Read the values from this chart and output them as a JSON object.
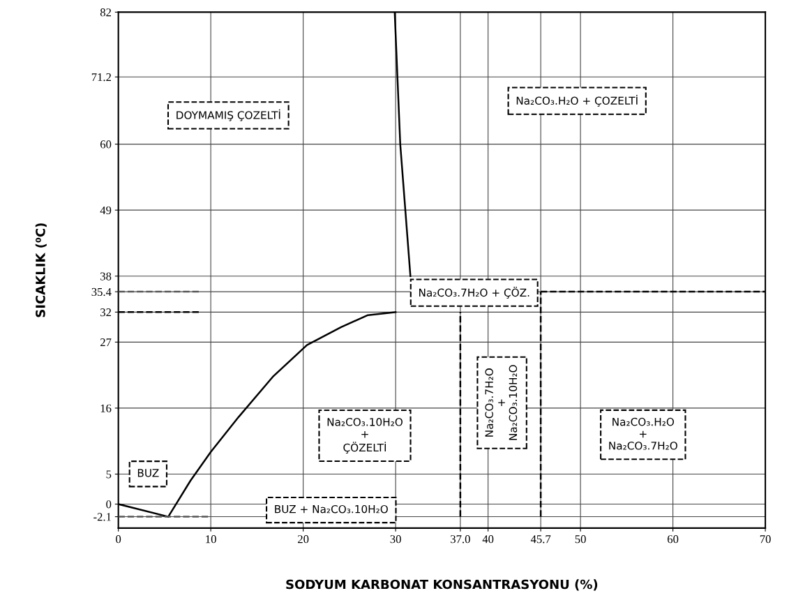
{
  "chart_data": {
    "type": "line",
    "xlabel": "SODYUM KARBONAT KONSANTRASYONU (%)",
    "ylabel": "SICAKLIK (⁰C)",
    "xlim": [
      0,
      70
    ],
    "ylim": [
      -4,
      82
    ],
    "xticks": [
      0,
      10,
      20,
      30,
      {
        "value": 37.0,
        "label": "37.0"
      },
      40,
      45.7,
      50,
      60,
      70
    ],
    "yticks": [
      -2.1,
      0,
      5,
      16,
      27,
      32,
      35.4,
      38,
      49,
      60,
      71.2,
      82
    ],
    "grid": true,
    "marker": "none",
    "series": [
      {
        "color": "#000000",
        "line_style": "solid",
        "x": [
          0,
          5.4
        ],
        "values": [
          0,
          -2.1
        ]
      },
      {
        "color": "#000000",
        "line_style": "solid",
        "x": [
          5.4,
          7.8,
          10,
          13,
          16.7,
          20.4,
          24.1,
          27,
          30
        ],
        "values": [
          -2.1,
          3.9,
          8.7,
          14.5,
          21.2,
          26.5,
          29.5,
          31.5,
          32
        ]
      },
      {
        "color": "#000000",
        "line_style": "solid",
        "x": [
          31.6,
          30.5,
          29.9
        ],
        "values": [
          38,
          60,
          82
        ]
      },
      {
        "color": "#555555",
        "line_style": "dashed",
        "x": [
          0,
          9
        ],
        "values": [
          35.4,
          35.4
        ]
      },
      {
        "color": "#000000",
        "line_style": "dashed",
        "x": [
          0,
          9
        ],
        "values": [
          32,
          32
        ]
      },
      {
        "color": "#555555",
        "line_style": "dashed",
        "x": [
          0,
          10
        ],
        "values": [
          -2.1,
          -2.1
        ]
      },
      {
        "color": "#000000",
        "line_style": "dashed",
        "x": [
          45.7,
          70
        ],
        "values": [
          35.4,
          35.4
        ]
      },
      {
        "color": "#000000",
        "line_style": "dashed",
        "x": [
          37.0,
          37.0
        ],
        "values": [
          -2.1,
          32
        ]
      },
      {
        "color": "#000000",
        "line_style": "dashed",
        "x": [
          45.7,
          45.7
        ],
        "values": [
          -2.1,
          35.4
        ]
      }
    ],
    "annotations": [
      "DOYMAMIŞ ÇOZELTİ",
      "Na₂CO₃.H₂O + ÇOZELTİ",
      "Na₂CO₃.7H₂O + ÇÖZ.",
      "Na₂CO₃.7H₂O\n+\nNa₂CO₃.10H₂O",
      "Na₂CO₃.H₂O\n+\nNa₂CO₃.7H₂O",
      "Na₂CO₃.10H₂O\n+\nÇÖZELTİ",
      "BUZ",
      "BUZ + Na₂CO₃.10H₂O"
    ]
  }
}
